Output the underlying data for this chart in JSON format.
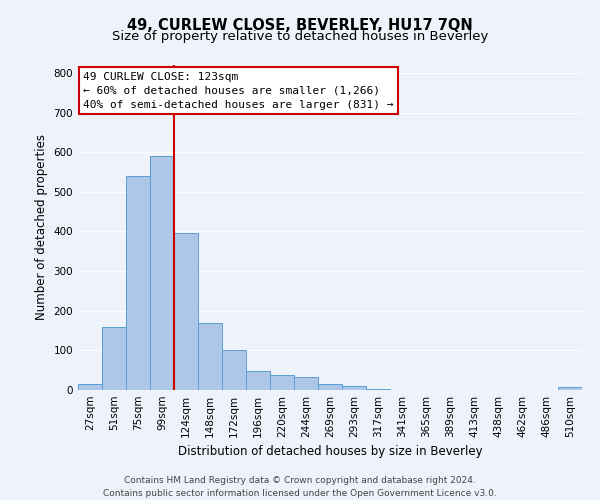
{
  "title": "49, CURLEW CLOSE, BEVERLEY, HU17 7QN",
  "subtitle": "Size of property relative to detached houses in Beverley",
  "xlabel": "Distribution of detached houses by size in Beverley",
  "ylabel": "Number of detached properties",
  "bar_labels": [
    "27sqm",
    "51sqm",
    "75sqm",
    "99sqm",
    "124sqm",
    "148sqm",
    "172sqm",
    "196sqm",
    "220sqm",
    "244sqm",
    "269sqm",
    "293sqm",
    "317sqm",
    "341sqm",
    "365sqm",
    "389sqm",
    "413sqm",
    "438sqm",
    "462sqm",
    "486sqm",
    "510sqm"
  ],
  "bar_values": [
    15,
    160,
    540,
    590,
    395,
    170,
    100,
    48,
    38,
    33,
    14,
    9,
    3,
    0,
    0,
    0,
    0,
    0,
    0,
    0,
    7
  ],
  "bar_color": "#aec6e8",
  "bar_edge_color": "#5a9fd4",
  "vline_color": "#cc0000",
  "vline_x_index": 4,
  "ylim": [
    0,
    820
  ],
  "yticks": [
    0,
    100,
    200,
    300,
    400,
    500,
    600,
    700,
    800
  ],
  "annotation_title": "49 CURLEW CLOSE: 123sqm",
  "annotation_line1": "← 60% of detached houses are smaller (1,266)",
  "annotation_line2": "40% of semi-detached houses are larger (831) →",
  "annotation_box_color": "#ffffff",
  "annotation_box_edge": "#cc0000",
  "footer1": "Contains HM Land Registry data © Crown copyright and database right 2024.",
  "footer2": "Contains public sector information licensed under the Open Government Licence v3.0.",
  "background_color": "#eef2fa",
  "grid_color": "#ffffff",
  "title_fontsize": 10.5,
  "subtitle_fontsize": 9.5,
  "axis_label_fontsize": 8.5,
  "tick_fontsize": 7.5,
  "annotation_fontsize": 8,
  "footer_fontsize": 6.5
}
